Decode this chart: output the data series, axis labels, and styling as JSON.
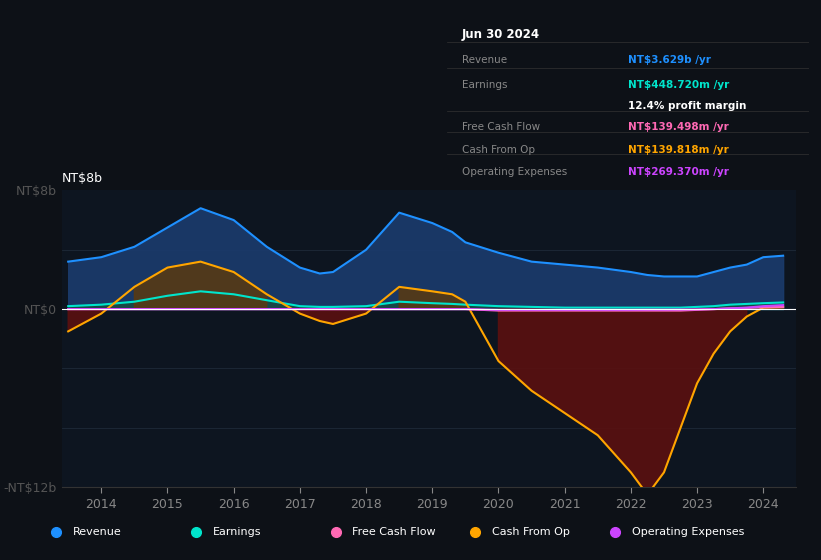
{
  "bg_color": "#0d1117",
  "chart_bg": "#0d1520",
  "title": "Jun 30 2024",
  "ylim": [
    -12,
    8
  ],
  "ytick_labels": [
    "-NT$12b",
    "NT$0",
    "NT$8b"
  ],
  "colors": {
    "revenue": "#1e90ff",
    "earnings": "#00e5cc",
    "free_cash_flow": "#ff69b4",
    "cash_from_op": "#ffa500",
    "op_expenses": "#cc44ff"
  },
  "info_rows": [
    {
      "label": "Revenue",
      "value": "NT$3.629b /yr",
      "color": "#1e90ff"
    },
    {
      "label": "Earnings",
      "value": "NT$448.720m /yr",
      "color": "#00e5cc"
    },
    {
      "label": "",
      "value": "12.4% profit margin",
      "color": "#ffffff"
    },
    {
      "label": "Free Cash Flow",
      "value": "NT$139.498m /yr",
      "color": "#ff69b4"
    },
    {
      "label": "Cash From Op",
      "value": "NT$139.818m /yr",
      "color": "#ffa500"
    },
    {
      "label": "Operating Expenses",
      "value": "NT$269.370m /yr",
      "color": "#cc44ff"
    }
  ],
  "legend_items": [
    {
      "label": "Revenue",
      "color": "#1e90ff"
    },
    {
      "label": "Earnings",
      "color": "#00e5cc"
    },
    {
      "label": "Free Cash Flow",
      "color": "#ff69b4"
    },
    {
      "label": "Cash From Op",
      "color": "#ffa500"
    },
    {
      "label": "Operating Expenses",
      "color": "#cc44ff"
    }
  ],
  "years": [
    2013.5,
    2014.0,
    2014.5,
    2015.0,
    2015.5,
    2016.0,
    2016.5,
    2017.0,
    2017.3,
    2017.5,
    2018.0,
    2018.5,
    2019.0,
    2019.3,
    2019.5,
    2020.0,
    2020.5,
    2021.0,
    2021.5,
    2022.0,
    2022.25,
    2022.5,
    2022.75,
    2023.0,
    2023.25,
    2023.5,
    2023.75,
    2024.0,
    2024.3
  ],
  "revenue": [
    3.2,
    3.5,
    4.2,
    5.5,
    6.8,
    6.0,
    4.2,
    2.8,
    2.4,
    2.5,
    4.0,
    6.5,
    5.8,
    5.2,
    4.5,
    3.8,
    3.2,
    3.0,
    2.8,
    2.5,
    2.3,
    2.2,
    2.2,
    2.2,
    2.5,
    2.8,
    3.0,
    3.5,
    3.6
  ],
  "earnings": [
    0.2,
    0.3,
    0.5,
    0.9,
    1.2,
    1.0,
    0.6,
    0.2,
    0.15,
    0.15,
    0.2,
    0.5,
    0.4,
    0.35,
    0.3,
    0.2,
    0.15,
    0.1,
    0.1,
    0.1,
    0.1,
    0.1,
    0.1,
    0.15,
    0.2,
    0.3,
    0.35,
    0.4,
    0.45
  ],
  "cash_from_op": [
    -1.5,
    -0.3,
    1.5,
    2.8,
    3.2,
    2.5,
    1.0,
    -0.3,
    -0.8,
    -1.0,
    -0.3,
    1.5,
    1.2,
    1.0,
    0.5,
    -3.5,
    -5.5,
    -7.0,
    -8.5,
    -11.0,
    -12.5,
    -11.0,
    -8.0,
    -5.0,
    -3.0,
    -1.5,
    -0.5,
    0.1,
    0.14
  ],
  "free_cash_flow": [
    0.0,
    0.0,
    0.0,
    0.0,
    0.0,
    0.0,
    0.0,
    0.0,
    0.0,
    0.0,
    0.0,
    0.0,
    0.0,
    0.0,
    0.0,
    -0.1,
    -0.1,
    -0.1,
    -0.1,
    -0.1,
    -0.1,
    -0.1,
    -0.1,
    -0.05,
    0.0,
    0.05,
    0.08,
    0.12,
    0.14
  ],
  "op_expenses": [
    0.0,
    0.0,
    0.0,
    0.0,
    0.0,
    0.0,
    0.0,
    0.0,
    0.0,
    0.0,
    0.0,
    0.0,
    0.0,
    0.0,
    0.0,
    -0.05,
    -0.05,
    -0.05,
    -0.05,
    -0.05,
    -0.04,
    -0.04,
    -0.03,
    -0.02,
    0.0,
    0.05,
    0.1,
    0.2,
    0.27
  ]
}
